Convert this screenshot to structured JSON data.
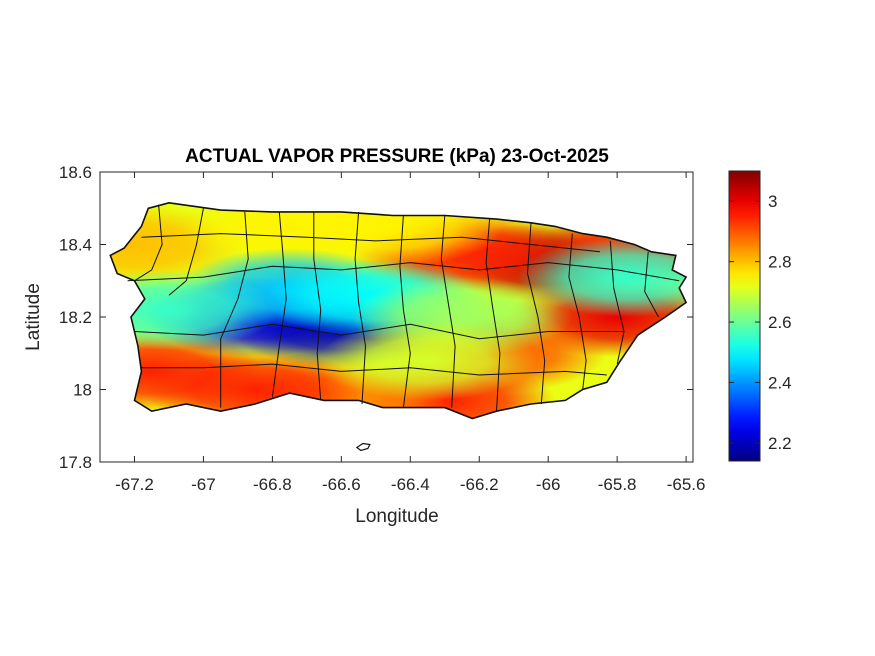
{
  "chart_data": {
    "type": "heatmap",
    "title": "ACTUAL VAPOR PRESSURE (kPa) 23-Oct-2025",
    "xlabel": "Longitude",
    "ylabel": "Latitude",
    "xlim": [
      -67.3,
      -65.58
    ],
    "ylim": [
      17.8,
      18.6
    ],
    "xticks": [
      -67.2,
      -67,
      -66.8,
      -66.6,
      -66.4,
      -66.2,
      -66,
      -65.8,
      -65.6
    ],
    "xtick_labels": [
      "-67.2",
      "-67",
      "-66.8",
      "-66.6",
      "-66.4",
      "-66.2",
      "-66",
      "-65.8",
      "-65.6"
    ],
    "yticks": [
      18.6,
      18.4,
      18.2,
      18
    ],
    "ytick_labels": [
      "18.6",
      "18.4",
      "18.2",
      "18"
    ],
    "ytick_bottom": 17.8,
    "ytick_bottom_label": "17.8",
    "colorbar": {
      "colormap": "jet",
      "range": [
        2.14,
        3.1
      ],
      "ticks": [
        3,
        2.8,
        2.6,
        2.4,
        2.2
      ],
      "tick_labels": [
        "3",
        "2.8",
        "2.6",
        "2.4",
        "2.2"
      ]
    },
    "field": {
      "base_value": 2.72,
      "regions": [
        {
          "lon": -66.0,
          "lat": 18.35,
          "value": 3.05
        },
        {
          "lon": -65.8,
          "lat": 18.2,
          "value": 3.0
        },
        {
          "lon": -65.7,
          "lat": 18.4,
          "value": 2.95
        },
        {
          "lon": -66.25,
          "lat": 18.38,
          "value": 2.95
        },
        {
          "lon": -66.15,
          "lat": 18.1,
          "value": 2.9
        },
        {
          "lon": -66.3,
          "lat": 17.97,
          "value": 2.95
        },
        {
          "lon": -66.6,
          "lat": 17.98,
          "value": 2.85
        },
        {
          "lon": -67.15,
          "lat": 18.05,
          "value": 2.95
        },
        {
          "lon": -66.85,
          "lat": 18.0,
          "value": 2.95
        },
        {
          "lon": -67.2,
          "lat": 18.4,
          "value": 2.8
        },
        {
          "lon": -66.75,
          "lat": 18.45,
          "value": 2.75
        },
        {
          "lon": -66.45,
          "lat": 18.45,
          "value": 2.75
        },
        {
          "lon": -66.85,
          "lat": 18.2,
          "value": 2.25
        },
        {
          "lon": -66.6,
          "lat": 18.17,
          "value": 2.2
        },
        {
          "lon": -66.75,
          "lat": 18.28,
          "value": 2.45
        },
        {
          "lon": -66.5,
          "lat": 18.25,
          "value": 2.5
        },
        {
          "lon": -67.1,
          "lat": 18.22,
          "value": 2.55
        },
        {
          "lon": -65.77,
          "lat": 18.31,
          "value": 2.55
        },
        {
          "lon": -66.25,
          "lat": 18.2,
          "value": 2.65
        },
        {
          "lon": -66.35,
          "lat": 18.08,
          "value": 2.7
        }
      ]
    }
  }
}
